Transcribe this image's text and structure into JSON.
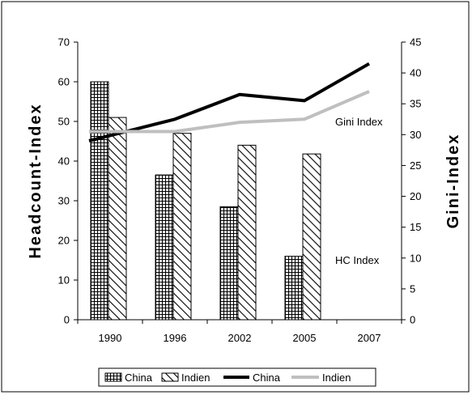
{
  "chart_data": {
    "type": "bar",
    "categories": [
      "1990",
      "1996",
      "2002",
      "2005",
      "2007"
    ],
    "left_axis": {
      "label": "Headcount-Index",
      "ylim": [
        0,
        70
      ],
      "ticks": [
        "0",
        "10",
        "20",
        "30",
        "40",
        "50",
        "60",
        "70"
      ]
    },
    "right_axis": {
      "label": "Gini-Index",
      "ylim": [
        0,
        45
      ],
      "ticks": [
        "0",
        "5",
        "10",
        "15",
        "20",
        "25",
        "30",
        "35",
        "40",
        "45"
      ]
    },
    "bar_series": [
      {
        "name": "China",
        "axis": "left",
        "values": [
          60,
          36.5,
          28.5,
          16,
          null
        ],
        "pattern": "grid"
      },
      {
        "name": "Indien",
        "axis": "left",
        "values": [
          51,
          47,
          44,
          41.8,
          null
        ],
        "pattern": "diagonal"
      }
    ],
    "line_series": [
      {
        "name": "China",
        "axis": "right",
        "values": [
          29,
          32.5,
          36.5,
          35.5,
          41.5
        ],
        "color": "#000000"
      },
      {
        "name": "Indien",
        "axis": "right",
        "values": [
          30.5,
          30.5,
          32,
          32.5,
          37
        ],
        "color": "#bfbfbf"
      }
    ],
    "annotations": [
      "Gini Index",
      "HC Index"
    ],
    "legend": [
      "China",
      "Indien",
      "China",
      "Indien"
    ],
    "legend_position": "bottom",
    "grid": false
  }
}
